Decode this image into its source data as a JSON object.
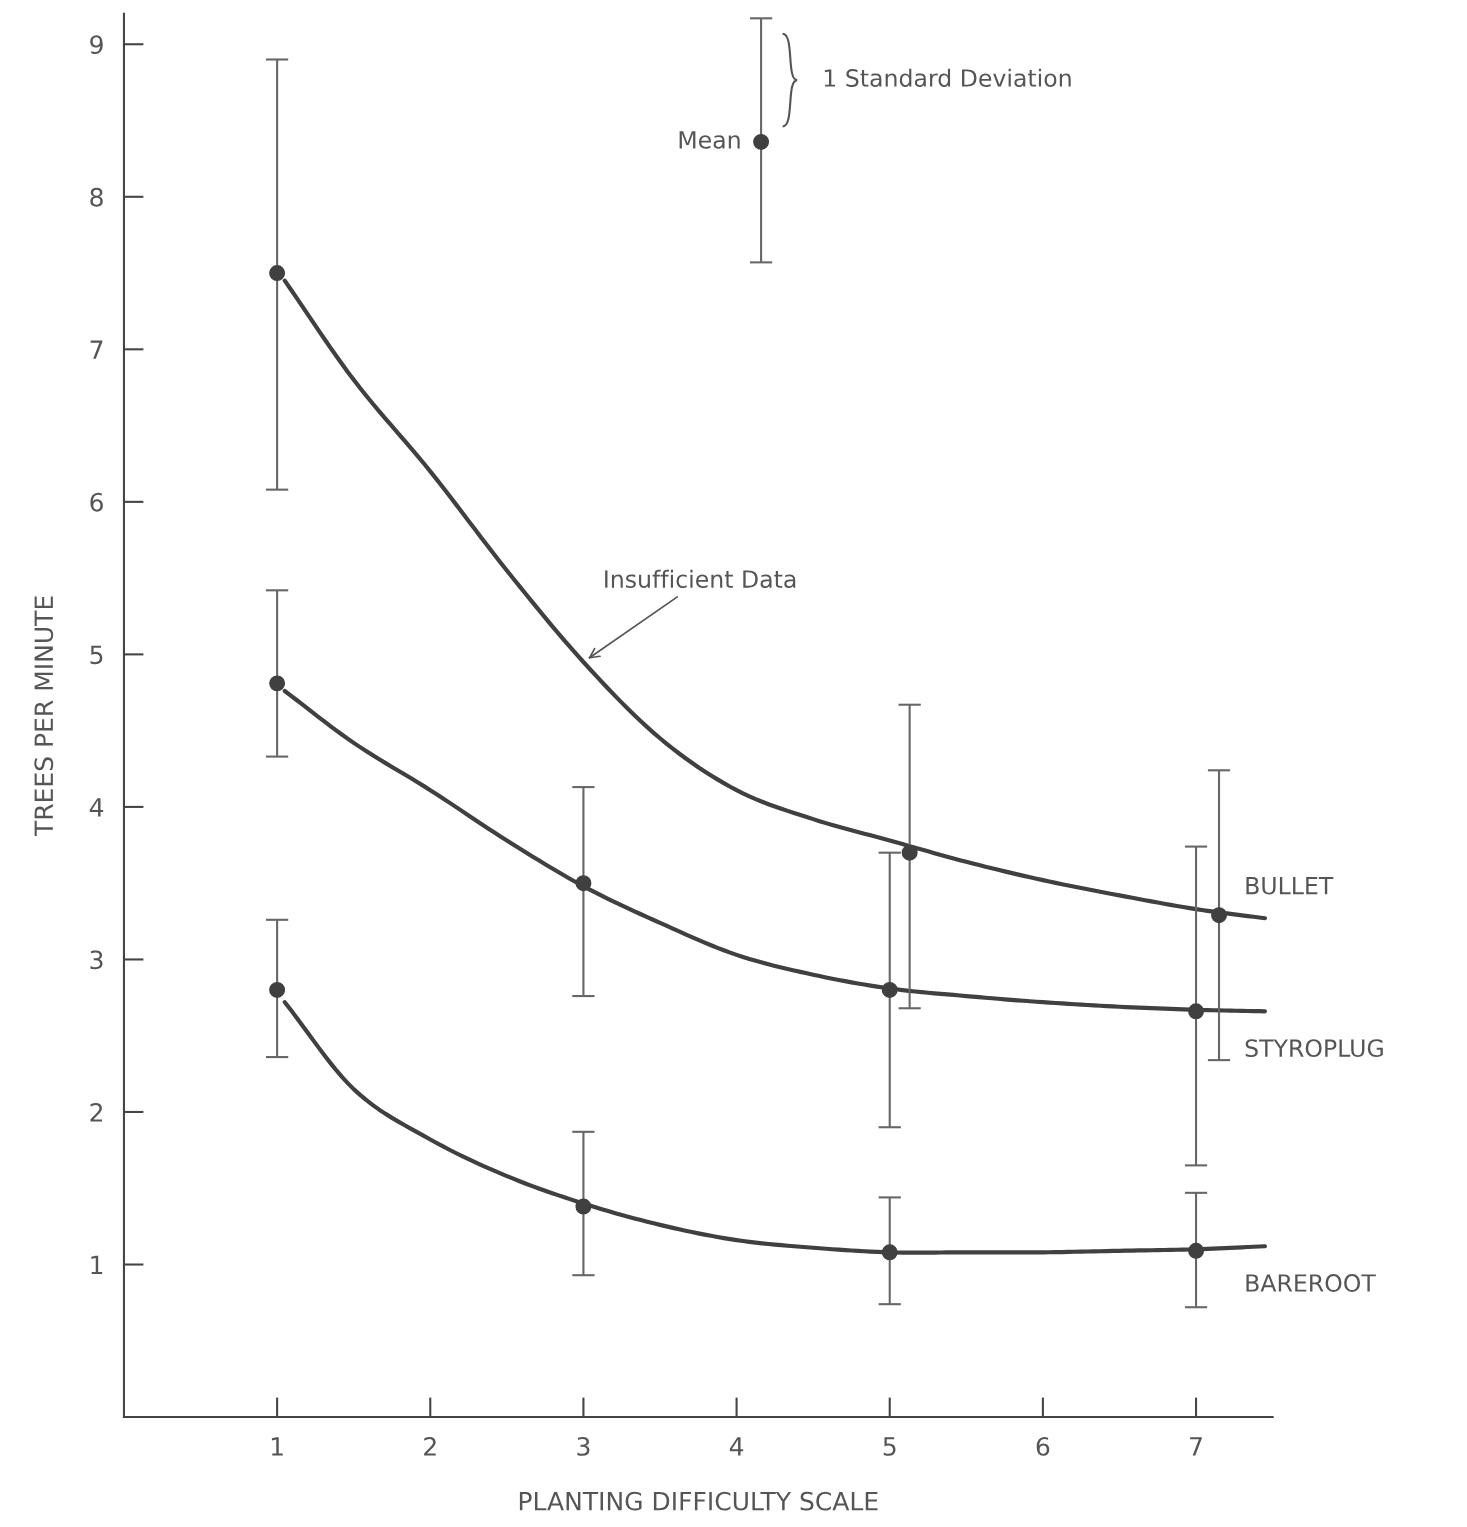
{
  "chart_data": {
    "type": "line",
    "xlabel": "PLANTING DIFFICULTY SCALE",
    "ylabel": "TREES PER MINUTE",
    "xlim": [
      0,
      7.5
    ],
    "ylim": [
      0,
      9.2
    ],
    "xticks": [
      1,
      2,
      3,
      4,
      5,
      6,
      7
    ],
    "yticks": [
      1,
      2,
      3,
      4,
      5,
      6,
      7,
      8,
      9
    ],
    "grid": false,
    "series": [
      {
        "name": "BULLET",
        "color": "#404040",
        "marker": "none",
        "x": [
          1.05,
          1.5,
          2,
          2.5,
          3,
          3.5,
          4,
          4.5,
          5,
          5.5,
          6,
          6.5,
          7,
          7.45
        ],
        "values": [
          7.45,
          6.8,
          6.2,
          5.55,
          4.95,
          4.45,
          4.11,
          3.92,
          3.78,
          3.64,
          3.52,
          3.42,
          3.33,
          3.27
        ]
      },
      {
        "name": "STYROPLUG",
        "color": "#404040",
        "marker": "none",
        "x": [
          1.05,
          1.5,
          2,
          2.5,
          3,
          3.5,
          4,
          4.5,
          5,
          5.5,
          6,
          6.5,
          7,
          7.45
        ],
        "values": [
          4.76,
          4.42,
          4.11,
          3.78,
          3.48,
          3.24,
          3.03,
          2.9,
          2.81,
          2.76,
          2.72,
          2.69,
          2.67,
          2.66
        ]
      },
      {
        "name": "BAREROOT",
        "color": "#404040",
        "marker": "none",
        "x": [
          1.05,
          1.5,
          2,
          2.5,
          3,
          3.5,
          4,
          4.5,
          5,
          5.5,
          6,
          6.5,
          7,
          7.45
        ],
        "values": [
          2.72,
          2.15,
          1.82,
          1.58,
          1.4,
          1.26,
          1.16,
          1.11,
          1.08,
          1.08,
          1.08,
          1.09,
          1.1,
          1.12
        ]
      },
      {
        "type": "scatter",
        "color": "#404040",
        "marker": "circle",
        "x": [
          1,
          5.13,
          7.15
        ],
        "values": [
          7.5,
          3.7,
          3.29
        ],
        "errors": [
          [
            6.08,
            8.9
          ],
          [
            2.68,
            4.67
          ],
          [
            2.34,
            4.24
          ]
        ]
      },
      {
        "type": "scatter",
        "color": "#404040",
        "marker": "circle",
        "x": [
          1,
          3,
          5,
          7
        ],
        "values": [
          4.81,
          3.5,
          2.8,
          2.66
        ],
        "errors": [
          [
            4.33,
            5.42
          ],
          [
            2.76,
            4.13
          ],
          [
            1.9,
            3.7
          ],
          [
            1.65,
            3.74
          ]
        ]
      },
      {
        "type": "scatter",
        "color": "#404040",
        "marker": "circle",
        "x": [
          1,
          3,
          5,
          7
        ],
        "values": [
          2.8,
          1.38,
          1.08,
          1.09
        ],
        "errors": [
          [
            2.36,
            3.26
          ],
          [
            0.93,
            1.87
          ],
          [
            0.74,
            1.44
          ],
          [
            0.72,
            1.47
          ]
        ]
      },
      {
        "type": "scatter",
        "name": "Mean",
        "color": "#404040",
        "marker": "circle",
        "x": [
          4.16
        ],
        "values": [
          8.36
        ],
        "errors": [
          [
            7.57,
            9.17
          ]
        ]
      }
    ],
    "annotations": [
      "Insufficient Data",
      "1 Standard Deviation"
    ]
  }
}
